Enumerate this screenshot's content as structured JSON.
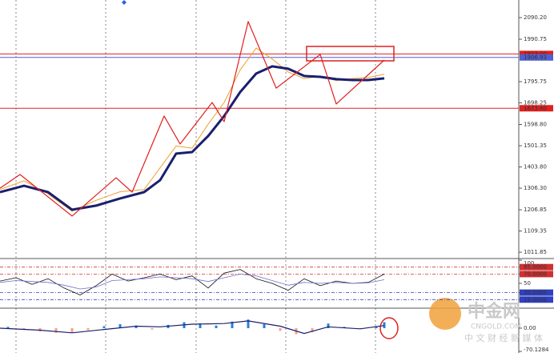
{
  "chart_data": [
    {
      "type": "line",
      "xlim": [
        0,
        129.6
      ],
      "ylim": [
        986.4,
        2171
      ],
      "yticks": [
        {
          "value": 2090.2,
          "label": "2090.20"
        },
        {
          "value": 1990.75,
          "label": "1990.75"
        },
        {
          "value": 1795.75,
          "label": "1795.75"
        },
        {
          "value": 1698.25,
          "label": "1698.25"
        },
        {
          "value": 1598.8,
          "label": "1598.80"
        },
        {
          "value": 1501.35,
          "label": "1501.35"
        },
        {
          "value": 1403.8,
          "label": "1403.80"
        },
        {
          "value": 1306.3,
          "label": "1306.30"
        },
        {
          "value": 1206.85,
          "label": "1206.85"
        },
        {
          "value": 1109.35,
          "label": "1109.35"
        },
        {
          "value": 1011.85,
          "label": "1011.85"
        }
      ],
      "price_lines": [
        {
          "value": 1923,
          "label": "1923.00",
          "color": "#e02020"
        },
        {
          "value": 1906.93,
          "label": "1906.93",
          "color": "#5060d0"
        },
        {
          "value": 1673.4,
          "label": "1673.40",
          "color": "#e02020"
        }
      ],
      "series": [
        {
          "color": "#f0a030",
          "width": 1,
          "x": [
            0,
            6,
            12,
            18,
            24,
            30,
            36,
            40,
            44,
            48,
            52,
            56,
            60,
            64,
            68,
            72,
            76,
            80,
            84,
            88,
            92,
            96
          ],
          "values": [
            1300,
            1340,
            1280,
            1200,
            1250,
            1290,
            1300,
            1400,
            1500,
            1490,
            1600,
            1700,
            1850,
            1950,
            1900,
            1840,
            1810,
            1820,
            1800,
            1810,
            1815,
            1830
          ]
        },
        {
          "color": "#1a1f6e",
          "width": 3,
          "x": [
            0,
            6,
            12,
            18,
            24,
            30,
            36,
            40,
            44,
            48,
            52,
            56,
            60,
            64,
            68,
            72,
            76,
            80,
            84,
            88,
            92,
            96
          ],
          "values": [
            1288,
            1317,
            1288,
            1207,
            1226,
            1259,
            1288,
            1343,
            1465,
            1472,
            1546,
            1638,
            1748,
            1833,
            1866,
            1855,
            1822,
            1818,
            1807,
            1803,
            1803,
            1811
          ]
        },
        {
          "color": "#e02020",
          "width": 1.2,
          "x": [
            0,
            5,
            18,
            29,
            33,
            41,
            45,
            53,
            56,
            62,
            69,
            80,
            84,
            96
          ],
          "values": [
            1306,
            1369,
            1178,
            1354,
            1288,
            1638,
            1509,
            1700,
            1612,
            2072,
            1766,
            1921,
            1693,
            1895
          ]
        }
      ]
    },
    {
      "type": "line",
      "xlim": [
        0,
        129.6
      ],
      "ylim": [
        0,
        100
      ],
      "yticks": [
        100,
        {
          "value": 85,
          "label": "85.0000",
          "color": "#d03030"
        },
        {
          "value": 70,
          "label": "70.0000",
          "color": "#d03030"
        },
        50,
        {
          "value": 30,
          "label": "30.0000",
          "color": "#3040c0"
        },
        {
          "value": 15,
          "label": "15.0000",
          "color": "#3040c0"
        }
      ],
      "series": [
        {
          "color": "#111111",
          "width": 0.8,
          "x": [
            0,
            4,
            8,
            12,
            16,
            20,
            24,
            28,
            32,
            36,
            40,
            44,
            48,
            52,
            56,
            60,
            64,
            68,
            72,
            76,
            80,
            84,
            88,
            92,
            96
          ],
          "values": [
            55,
            62,
            48,
            60,
            40,
            25,
            45,
            70,
            55,
            62,
            70,
            58,
            66,
            40,
            72,
            80,
            60,
            50,
            35,
            60,
            45,
            55,
            50,
            52,
            70
          ]
        },
        {
          "color": "#7070d0",
          "width": 0.8,
          "x": [
            0,
            4,
            8,
            12,
            16,
            20,
            24,
            28,
            32,
            36,
            40,
            44,
            48,
            52,
            56,
            60,
            64,
            68,
            72,
            76,
            80,
            84,
            88,
            92,
            96
          ],
          "values": [
            52,
            56,
            54,
            52,
            46,
            38,
            42,
            56,
            58,
            60,
            64,
            62,
            60,
            54,
            62,
            70,
            66,
            56,
            46,
            52,
            50,
            52,
            50,
            51,
            58
          ]
        }
      ]
    },
    {
      "type": "bar",
      "xlim": [
        0,
        129.6
      ],
      "ylim": [
        -75,
        58
      ],
      "yticks": [
        {
          "value": 0,
          "label": "0.00"
        },
        -70.1284
      ],
      "color_pos": "#2a7fd8",
      "color_neg": "#f5a080",
      "x": [
        2,
        6,
        10,
        14,
        18,
        22,
        26,
        30,
        34,
        38,
        42,
        46,
        50,
        54,
        58,
        62,
        66,
        70,
        74,
        78,
        82,
        86,
        90,
        94,
        96
      ],
      "values": [
        4,
        -5,
        -10,
        -14,
        -12,
        -6,
        6,
        12,
        8,
        -4,
        10,
        18,
        14,
        8,
        20,
        26,
        12,
        -8,
        -18,
        -12,
        14,
        4,
        -2,
        6,
        18
      ],
      "signal": {
        "color": "#1a1f6e",
        "x": [
          0,
          10,
          18,
          26,
          34,
          40,
          48,
          56,
          62,
          70,
          76,
          82,
          90,
          96
        ],
        "values": [
          0,
          -6,
          -14,
          -4,
          6,
          4,
          12,
          14,
          22,
          6,
          -16,
          4,
          -2,
          8
        ]
      }
    }
  ],
  "watermark": {
    "brand": "中金网",
    "site": "CNGOLD.COM",
    "tagline": "中 文 财 经 新 媒 体"
  }
}
